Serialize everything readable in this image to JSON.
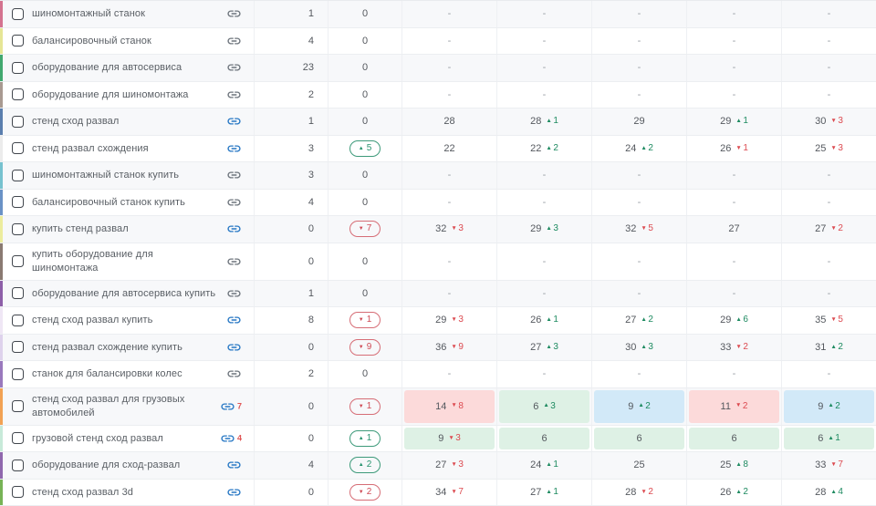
{
  "glyphs": {
    "up_arrow": "▲",
    "down_arrow": "▼",
    "dash": "-",
    "zero": "0"
  },
  "icons": {
    "link": "chain-link-icon"
  },
  "colors": {
    "link_active": "#2677c4",
    "link_inactive": "#6d747c",
    "link_count": "#e05555",
    "positive": "#27936e",
    "negative": "#cf4a55",
    "bg_red": "#fcdada",
    "bg_green": "#def1e5",
    "bg_blue": "#d2e9f8",
    "row_alt": "#f7f8fa"
  },
  "table": {
    "rows": [
      {
        "keyword": [
          "шиномонтажный станок"
        ],
        "marker": "#d4738f",
        "link_active": false,
        "link_count": null,
        "queries": "1",
        "change": 0,
        "positions": [
          {
            "v": "-"
          },
          {
            "v": "-"
          },
          {
            "v": "-"
          },
          {
            "v": "-"
          },
          {
            "v": "-"
          }
        ]
      },
      {
        "keyword": [
          "балансировочный станок"
        ],
        "marker": "#e6e696",
        "link_active": false,
        "link_count": null,
        "queries": "4",
        "change": 0,
        "positions": [
          {
            "v": "-"
          },
          {
            "v": "-"
          },
          {
            "v": "-"
          },
          {
            "v": "-"
          },
          {
            "v": "-"
          }
        ]
      },
      {
        "keyword": [
          "оборудование для автосервиса"
        ],
        "marker": "#41a86f",
        "link_active": false,
        "link_count": null,
        "queries": "23",
        "change": 0,
        "positions": [
          {
            "v": "-"
          },
          {
            "v": "-"
          },
          {
            "v": "-"
          },
          {
            "v": "-"
          },
          {
            "v": "-"
          }
        ]
      },
      {
        "keyword": [
          "оборудование для шиномонтажа"
        ],
        "marker": "#a99a91",
        "link_active": false,
        "link_count": null,
        "queries": "2",
        "change": 0,
        "positions": [
          {
            "v": "-"
          },
          {
            "v": "-"
          },
          {
            "v": "-"
          },
          {
            "v": "-"
          },
          {
            "v": "-"
          }
        ]
      },
      {
        "keyword": [
          "стенд сход развал"
        ],
        "marker": "#5b7fae",
        "link_active": true,
        "link_count": null,
        "queries": "1",
        "change": 0,
        "positions": [
          {
            "v": "28"
          },
          {
            "v": "28",
            "d": 1
          },
          {
            "v": "29"
          },
          {
            "v": "29",
            "d": 1
          },
          {
            "v": "30",
            "d": -3
          }
        ]
      },
      {
        "keyword": [
          "стенд развал схождения"
        ],
        "marker": "#ececec",
        "link_active": true,
        "link_count": null,
        "queries": "3",
        "change": 5,
        "positions": [
          {
            "v": "22"
          },
          {
            "v": "22",
            "d": 2
          },
          {
            "v": "24",
            "d": 2
          },
          {
            "v": "26",
            "d": -1
          },
          {
            "v": "25",
            "d": -3
          }
        ]
      },
      {
        "keyword": [
          "шиномонтажный станок купить"
        ],
        "marker": "#77c2cf",
        "link_active": false,
        "link_count": null,
        "queries": "3",
        "change": 0,
        "positions": [
          {
            "v": "-"
          },
          {
            "v": "-"
          },
          {
            "v": "-"
          },
          {
            "v": "-"
          },
          {
            "v": "-"
          }
        ]
      },
      {
        "keyword": [
          "балансировочный станок купить"
        ],
        "marker": "#6a92c6",
        "link_active": false,
        "link_count": null,
        "queries": "4",
        "change": 0,
        "positions": [
          {
            "v": "-"
          },
          {
            "v": "-"
          },
          {
            "v": "-"
          },
          {
            "v": "-"
          },
          {
            "v": "-"
          }
        ]
      },
      {
        "keyword": [
          "купить стенд развал"
        ],
        "marker": "#ecec9e",
        "link_active": true,
        "link_count": null,
        "queries": "0",
        "change": -7,
        "positions": [
          {
            "v": "32",
            "d": -3
          },
          {
            "v": "29",
            "d": 3
          },
          {
            "v": "32",
            "d": -5
          },
          {
            "v": "27"
          },
          {
            "v": "27",
            "d": -2
          }
        ]
      },
      {
        "keyword": [
          "купить оборудование для",
          "шиномонтажа"
        ],
        "marker": "#8a7a72",
        "link_active": false,
        "link_count": null,
        "queries": "0",
        "change": 0,
        "positions": [
          {
            "v": "-"
          },
          {
            "v": "-"
          },
          {
            "v": "-"
          },
          {
            "v": "-"
          },
          {
            "v": "-"
          }
        ]
      },
      {
        "keyword": [
          "оборудование для автосервиса купить"
        ],
        "marker": "#8d5fa8",
        "link_active": false,
        "link_count": null,
        "queries": "1",
        "change": 0,
        "positions": [
          {
            "v": "-"
          },
          {
            "v": "-"
          },
          {
            "v": "-"
          },
          {
            "v": "-"
          },
          {
            "v": "-"
          }
        ]
      },
      {
        "keyword": [
          "стенд сход развал купить"
        ],
        "marker": "#efe7f5",
        "link_active": true,
        "link_count": null,
        "queries": "8",
        "change": -1,
        "positions": [
          {
            "v": "29",
            "d": -3
          },
          {
            "v": "26",
            "d": 1
          },
          {
            "v": "27",
            "d": 2
          },
          {
            "v": "29",
            "d": 6
          },
          {
            "v": "35",
            "d": -5
          }
        ]
      },
      {
        "keyword": [
          "стенд развал схождение купить"
        ],
        "marker": "#ded2ec",
        "link_active": true,
        "link_count": null,
        "queries": "0",
        "change": -9,
        "positions": [
          {
            "v": "36",
            "d": -9
          },
          {
            "v": "27",
            "d": 3
          },
          {
            "v": "30",
            "d": 3
          },
          {
            "v": "33",
            "d": -2
          },
          {
            "v": "31",
            "d": 2
          }
        ]
      },
      {
        "keyword": [
          "станок для балансировки колес"
        ],
        "marker": "#9a79bd",
        "link_active": false,
        "link_count": null,
        "queries": "2",
        "change": 0,
        "positions": [
          {
            "v": "-"
          },
          {
            "v": "-"
          },
          {
            "v": "-"
          },
          {
            "v": "-"
          },
          {
            "v": "-"
          }
        ]
      },
      {
        "keyword": [
          "стенд сход развал для грузовых",
          "автомобилей"
        ],
        "marker": "#f2a254",
        "link_active": true,
        "link_count": "7",
        "queries": "0",
        "change": -1,
        "positions": [
          {
            "v": "14",
            "d": -8,
            "bg": "red"
          },
          {
            "v": "6",
            "d": 3,
            "bg": "green"
          },
          {
            "v": "9",
            "d": 2,
            "bg": "blue"
          },
          {
            "v": "11",
            "d": -2,
            "bg": "red"
          },
          {
            "v": "9",
            "d": 2,
            "bg": "blue"
          }
        ]
      },
      {
        "keyword": [
          "грузовой стенд сход развал"
        ],
        "marker": "#c8ead9",
        "link_active": true,
        "link_count": "4",
        "queries": "0",
        "change": 1,
        "positions": [
          {
            "v": "9",
            "d": -3,
            "bg": "green"
          },
          {
            "v": "6",
            "bg": "green"
          },
          {
            "v": "6",
            "bg": "green"
          },
          {
            "v": "6",
            "bg": "green"
          },
          {
            "v": "6",
            "d": 1,
            "bg": "green"
          }
        ]
      },
      {
        "keyword": [
          "оборудование для сход-развал"
        ],
        "marker": "#8f67ad",
        "link_active": true,
        "link_count": null,
        "queries": "4",
        "change": 2,
        "positions": [
          {
            "v": "27",
            "d": -3
          },
          {
            "v": "24",
            "d": 1
          },
          {
            "v": "25"
          },
          {
            "v": "25",
            "d": 8
          },
          {
            "v": "33",
            "d": -7
          }
        ]
      },
      {
        "keyword": [
          "стенд сход развал 3d"
        ],
        "marker": "#77b356",
        "link_active": true,
        "link_count": null,
        "queries": "0",
        "change": -2,
        "positions": [
          {
            "v": "34",
            "d": -7
          },
          {
            "v": "27",
            "d": 1
          },
          {
            "v": "28",
            "d": -2
          },
          {
            "v": "26",
            "d": 2
          },
          {
            "v": "28",
            "d": 4
          }
        ]
      }
    ]
  }
}
